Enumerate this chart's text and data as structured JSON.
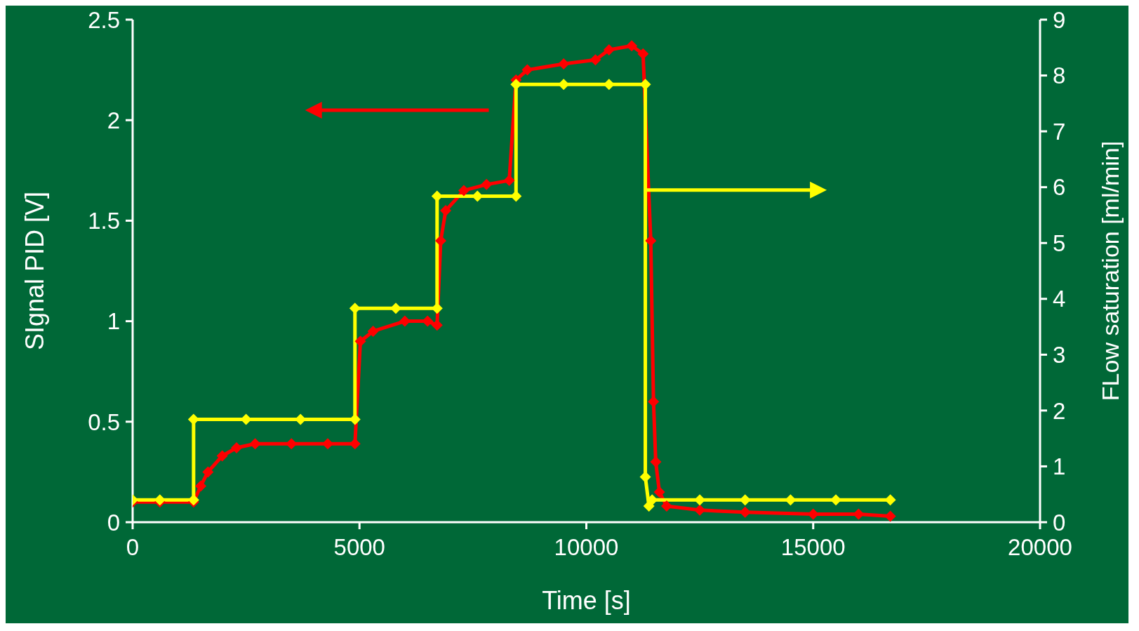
{
  "chart_data": {
    "type": "line",
    "xlabel": "Time [s]",
    "ylabel": "SIgnal PID [V]",
    "y2label": "FLow saturation [ml/min]",
    "xlim": [
      0,
      20000
    ],
    "xticks": [
      0,
      5000,
      10000,
      15000,
      20000
    ],
    "ylim": [
      0,
      2.5
    ],
    "yticks": [
      0,
      0.5,
      1,
      1.5,
      2,
      2.5
    ],
    "y2lim": [
      0,
      9
    ],
    "y2ticks": [
      0,
      1,
      2,
      3,
      4,
      5,
      6,
      7,
      8,
      9
    ],
    "marker": "diamond",
    "series": [
      {
        "color": "#ff0000",
        "x": [
          0,
          600,
          1343,
          1500,
          1660,
          1975,
          2290,
          2700,
          3500,
          4300,
          4900,
          5020,
          5300,
          6000,
          6500,
          6710,
          6790,
          6900,
          7300,
          7800,
          8300,
          8450,
          8700,
          9500,
          10200,
          10500,
          11000,
          11250,
          11420,
          11480,
          11530,
          11610,
          11770,
          12500,
          13500,
          15000,
          16000,
          16700
        ],
        "values": [
          0.1,
          0.1,
          0.1,
          0.18,
          0.25,
          0.33,
          0.37,
          0.39,
          0.39,
          0.39,
          0.39,
          0.9,
          0.95,
          1.0,
          1.0,
          0.98,
          1.4,
          1.55,
          1.65,
          1.68,
          1.7,
          2.2,
          2.25,
          2.28,
          2.3,
          2.35,
          2.37,
          2.33,
          1.4,
          0.6,
          0.3,
          0.15,
          0.08,
          0.06,
          0.05,
          0.04,
          0.04,
          0.03
        ]
      },
      {
        "color": "#ffff00",
        "axis": "y2",
        "x": [
          0,
          600,
          1343,
          1343,
          2500,
          3700,
          4900,
          4900,
          5800,
          6710,
          6710,
          7600,
          8450,
          8450,
          9500,
          10500,
          11300,
          11300,
          11380,
          11450,
          12500,
          13500,
          14500,
          15500,
          16700
        ],
        "values": [
          0.4,
          0.4,
          0.4,
          1.84,
          1.84,
          1.84,
          1.84,
          3.83,
          3.83,
          3.83,
          5.84,
          5.84,
          5.84,
          7.84,
          7.84,
          7.84,
          7.84,
          0.81,
          0.29,
          0.4,
          0.4,
          0.4,
          0.4,
          0.4,
          0.4
        ]
      }
    ]
  }
}
